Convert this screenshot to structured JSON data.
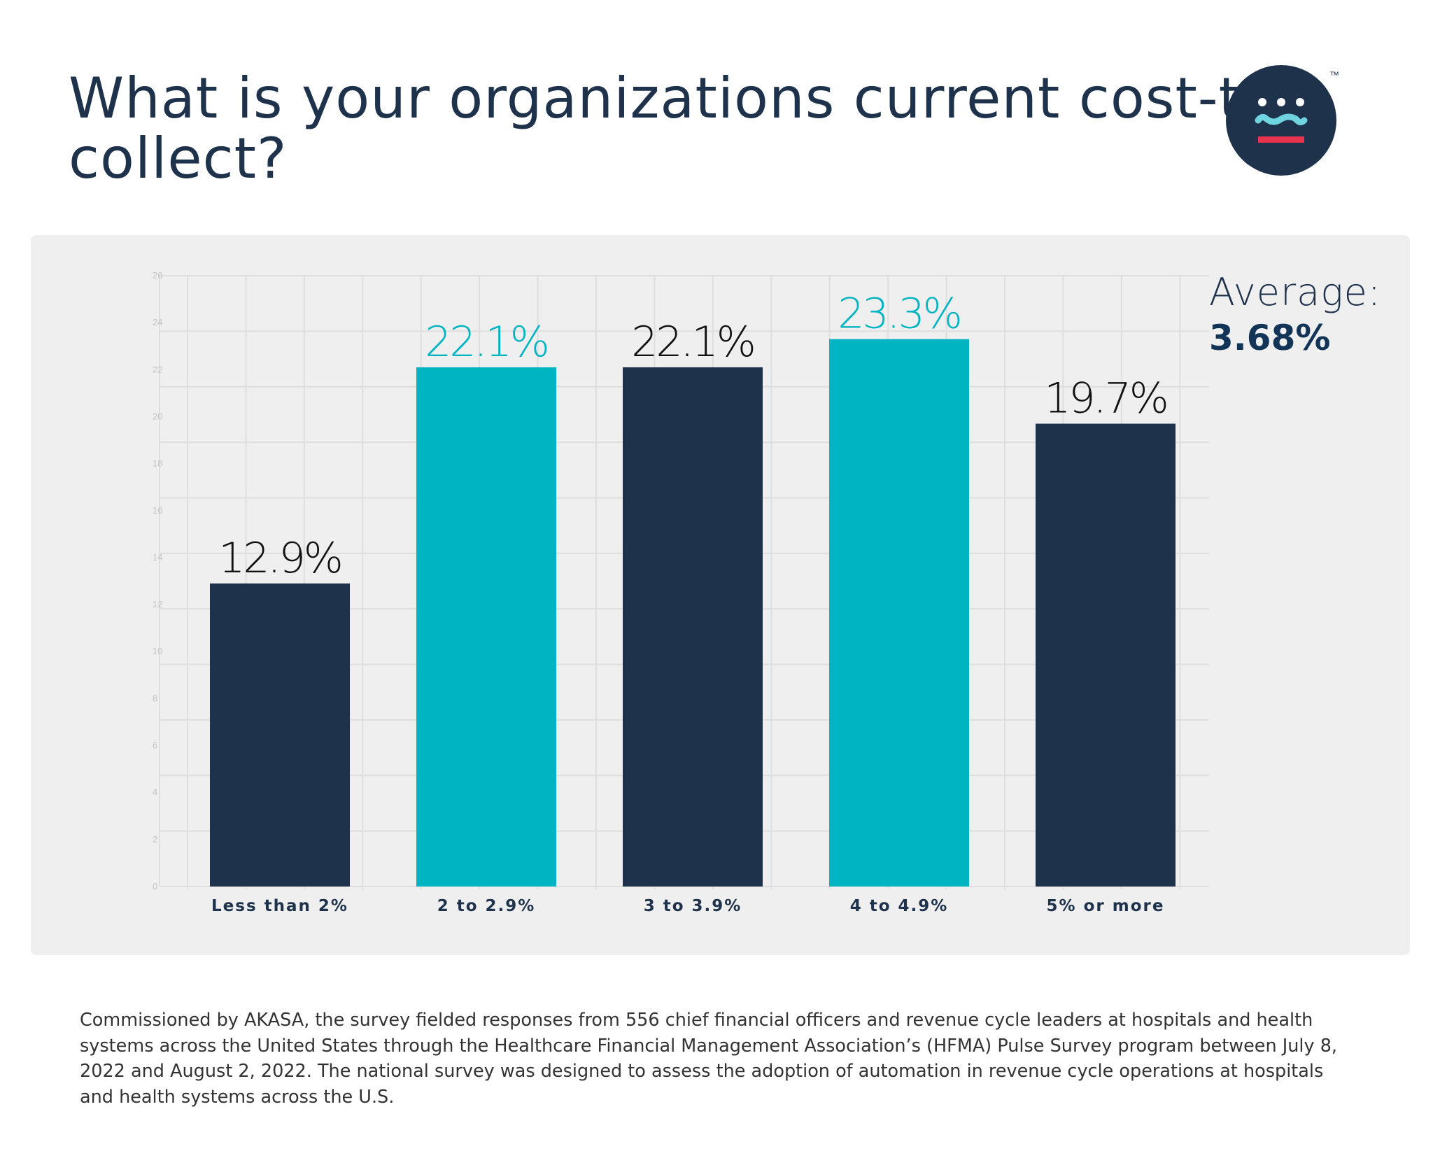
{
  "title": "What is your organizations current cost-to-collect?",
  "logo": {
    "name": "AKASA logo",
    "trademark": "™",
    "colors": {
      "circle": "#1e324b",
      "dots": "#ffffff",
      "wave": "#6fd3e0",
      "bar": "#e8334f"
    }
  },
  "average": {
    "label": "Average:",
    "value": "3.68%"
  },
  "footnote": "Commissioned by AKASA, the survey fielded responses from 556 chief financial officers and revenue cycle leaders at hospitals and health systems across the United States through the Healthcare Financial Management Association’s (HFMA) Pulse Survey program between July 8, 2022 and August 2, 2022. The national survey was designed to assess the adoption of automation in revenue cycle operations at hospitals and health systems across the U.S.",
  "chart_data": {
    "type": "bar",
    "categories": [
      "Less than 2%",
      "2 to 2.9%",
      "3 to 3.9%",
      "4 to 4.9%",
      "5% or more"
    ],
    "values": [
      12.9,
      22.1,
      22.1,
      23.3,
      19.7
    ],
    "data_labels": [
      "12.9%",
      "22.1%",
      "22.1%",
      "23.3%",
      "19.7%"
    ],
    "bar_colors": [
      "#1e324b",
      "#00b4c1",
      "#1e324b",
      "#00b4c1",
      "#1e324b"
    ],
    "yticks": [
      "0",
      "2",
      "4",
      "6",
      "8",
      "10",
      "12",
      "14",
      "16",
      "18",
      "20",
      "22",
      "24",
      "26"
    ],
    "ylim": [
      0,
      26
    ],
    "grid": true,
    "xlabel": "",
    "ylabel": ""
  }
}
